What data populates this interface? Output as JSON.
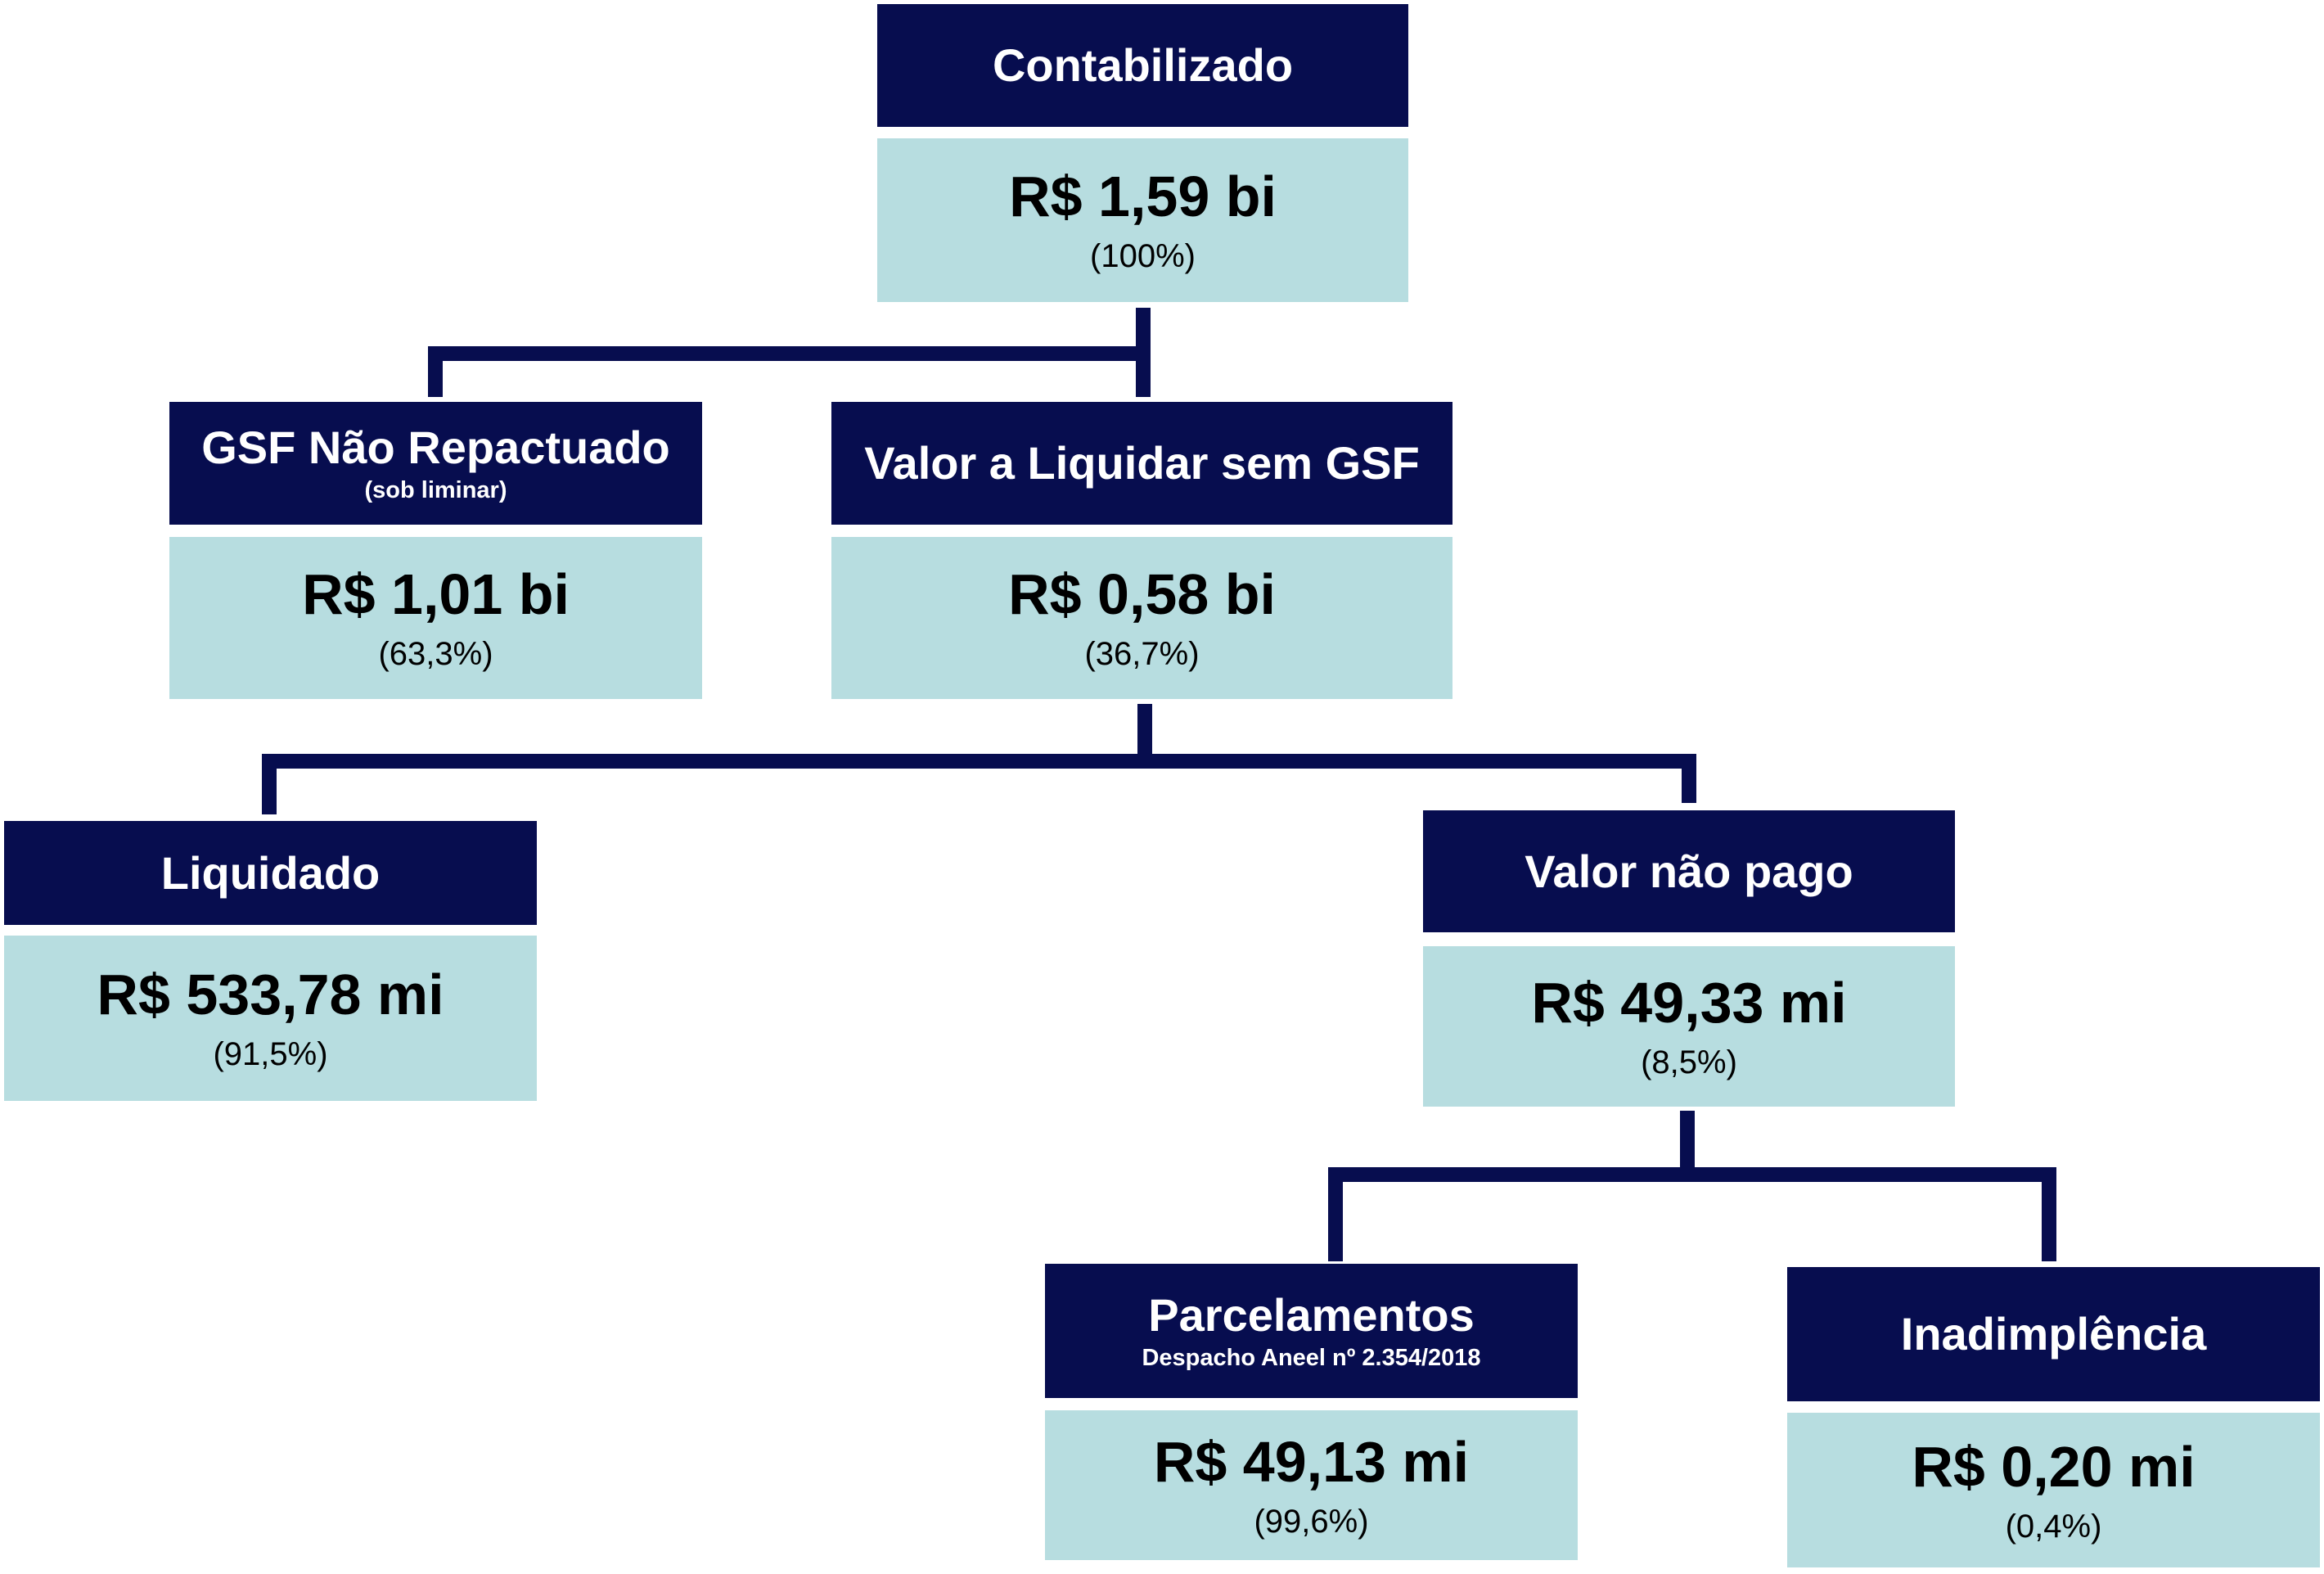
{
  "nodes": [
    {
      "title": "Contabilizado",
      "value": "R$ 1,59 bi",
      "percent": "(100%)"
    },
    {
      "title": "GSF Não Repactuado",
      "subtitle": "(sob liminar)",
      "value": "R$ 1,01 bi",
      "percent": "(63,3%)"
    },
    {
      "title": "Valor a Liquidar sem GSF",
      "value": "R$ 0,58 bi",
      "percent": "(36,7%)"
    },
    {
      "title": "Liquidado",
      "value": "R$ 533,78 mi",
      "percent": "(91,5%)"
    },
    {
      "title": "Valor não pago",
      "value": "R$ 49,33 mi",
      "percent": "(8,5%)"
    },
    {
      "title": "Parcelamentos",
      "subtitle": "Despacho Aneel nº 2.354/2018",
      "value": "R$ 49,13 mi",
      "percent": "(99,6%)"
    },
    {
      "title": "Inadimplência",
      "value": "R$ 0,20 mi",
      "percent": "(0,4%)"
    }
  ]
}
